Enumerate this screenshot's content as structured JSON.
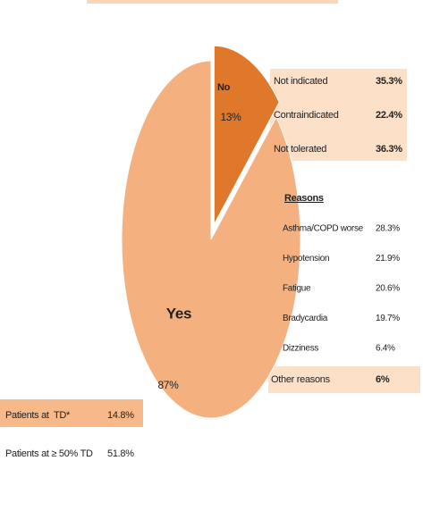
{
  "chart_data": {
    "type": "pie",
    "categories": [
      "No",
      "Yes"
    ],
    "values": [
      13,
      87
    ],
    "value_labels": [
      "13%",
      "87%"
    ],
    "colors": [
      "#e0782c",
      "#f5b080"
    ]
  },
  "not_used_table": {
    "rows": [
      [
        "Not indicated",
        "35.3%"
      ],
      [
        "Contraindicated",
        "22.4%"
      ],
      [
        "Not tolerated",
        "36.3%"
      ]
    ]
  },
  "reasons": {
    "title": "Reasons",
    "rows": [
      [
        "Asthma/COPD worse",
        "28.3%"
      ],
      [
        "Hypotension",
        "21.9%"
      ],
      [
        "Fatigue",
        "20.6%"
      ],
      [
        "Bradycardia",
        "19.7%"
      ],
      [
        "Dizziness",
        "6.4%"
      ]
    ],
    "other": [
      "Other reasons",
      "6%"
    ]
  },
  "td_table": {
    "rows": [
      [
        "Patients at  TD*",
        "14.8%"
      ],
      [
        "Patients at ≥ 50% TD",
        "51.8%"
      ]
    ]
  }
}
